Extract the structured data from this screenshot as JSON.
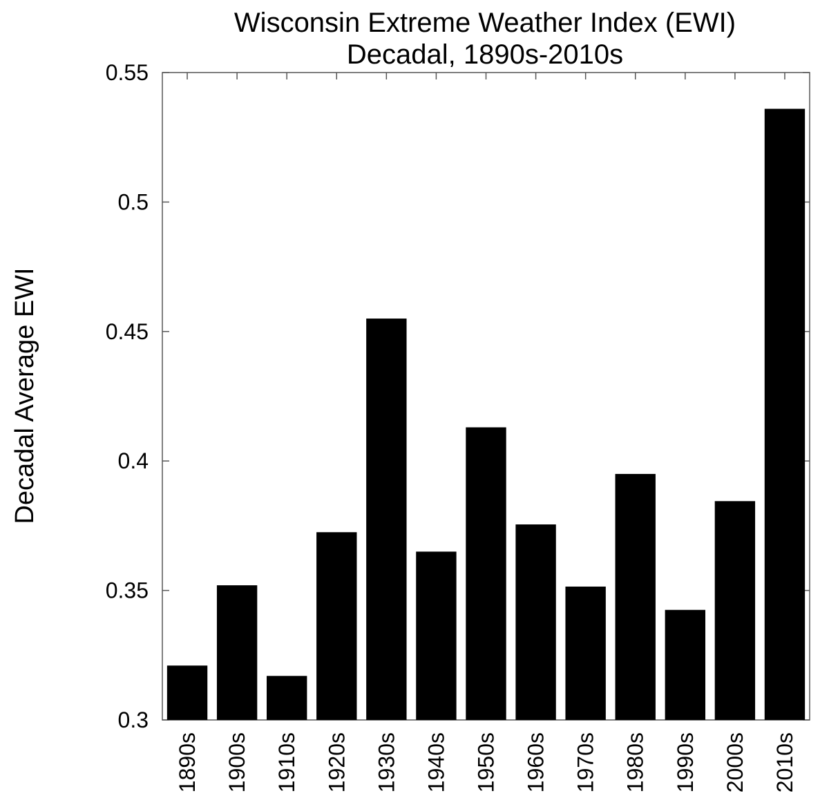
{
  "chart_data": {
    "type": "bar",
    "title": "Wisconsin Extreme Weather Index (EWI)",
    "subtitle": "Decadal, 1890s-2010s",
    "xlabel": "",
    "ylabel": "Decadal Average EWI",
    "categories": [
      "1890s",
      "1900s",
      "1910s",
      "1920s",
      "1930s",
      "1940s",
      "1950s",
      "1960s",
      "1970s",
      "1980s",
      "1990s",
      "2000s",
      "2010s"
    ],
    "values": [
      0.321,
      0.352,
      0.317,
      0.3725,
      0.455,
      0.365,
      0.413,
      0.3755,
      0.3515,
      0.395,
      0.3425,
      0.3845,
      0.536
    ],
    "ylim": [
      0.3,
      0.55
    ],
    "yticks": [
      "0.3",
      "0.35",
      "0.4",
      "0.45",
      "0.5",
      "0.55"
    ],
    "bar_color": "#000000",
    "grid": false,
    "legend": "none"
  }
}
